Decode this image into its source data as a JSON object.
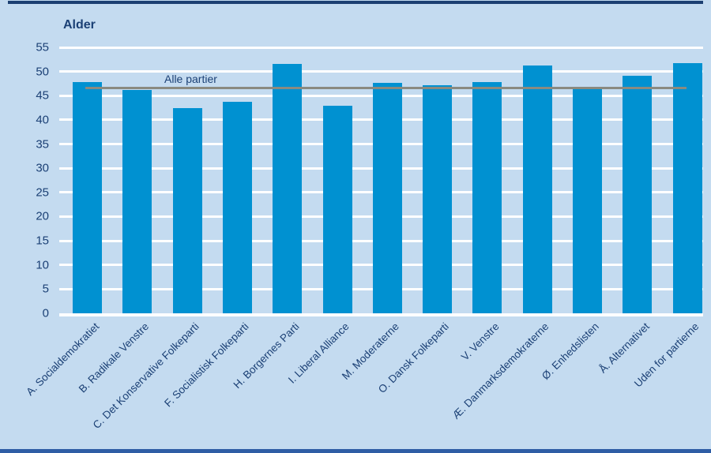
{
  "chart_data": {
    "type": "bar",
    "title": "Alder",
    "categories": [
      "A. Socialdemokratiet",
      "B. Radikale Venstre",
      "C. Det Konservative Folkeparti",
      "F. Socialistisk Folkeparti",
      "H. Borgernes Parti",
      "I. Liberal Alliance",
      "M. Moderaterne",
      "O. Dansk Folkeparti",
      "V. Venstre",
      "Æ. Danmarksdemokraterne",
      "Ø. Enhedslisten",
      "Å. Alternativet",
      "Uden for partierne"
    ],
    "values": [
      47.8,
      46.2,
      42.4,
      43.8,
      51.5,
      43.0,
      47.6,
      47.1,
      47.8,
      51.2,
      46.3,
      49.1,
      51.8
    ],
    "xlabel": "",
    "ylabel": "Alder",
    "ylim": [
      0,
      55
    ],
    "ytick_step": 5,
    "yticks": [
      0,
      5,
      10,
      15,
      20,
      25,
      30,
      35,
      40,
      45,
      50,
      55
    ],
    "grid": "horizontal-white-gridlines",
    "legend_position": "none",
    "reference_line": {
      "label": "Alle partier",
      "value": 46.6
    }
  },
  "colors": {
    "background": "#c4dbf0",
    "bar": "#0091d1",
    "text": "#1b4075",
    "gridline": "#ffffff",
    "reference_line": "#8a8a80",
    "top_rule": "#1b3f72",
    "bottom_rule": "#2e5da5"
  }
}
